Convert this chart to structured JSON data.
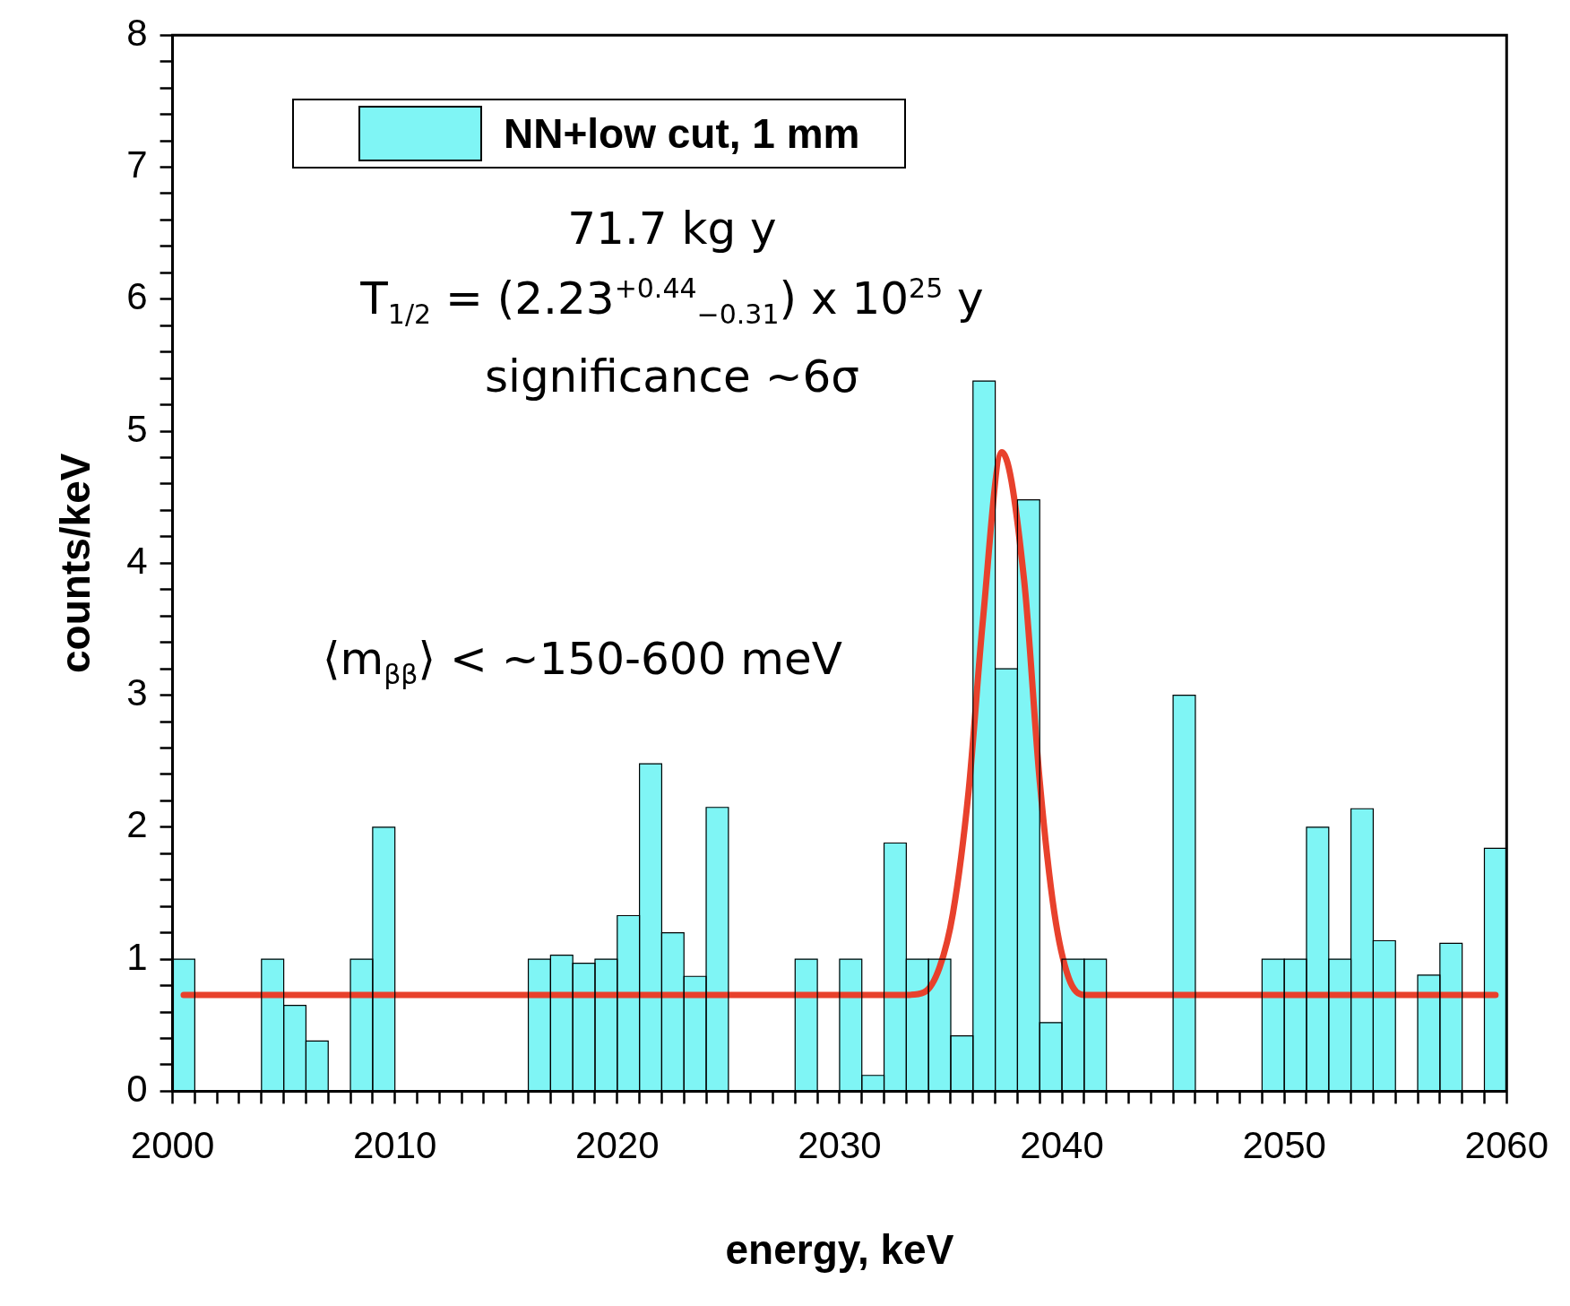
{
  "chart_data": {
    "type": "histogram",
    "xlabel": "energy, keV",
    "ylabel": "counts/keV",
    "bins": [
      2000,
      2001,
      2002,
      2003,
      2004,
      2005,
      2006,
      2007,
      2008,
      2009,
      2010,
      2011,
      2012,
      2013,
      2014,
      2015,
      2016,
      2017,
      2018,
      2019,
      2020,
      2021,
      2022,
      2023,
      2024,
      2025,
      2026,
      2027,
      2028,
      2029,
      2030,
      2031,
      2032,
      2033,
      2034,
      2035,
      2036,
      2037,
      2038,
      2039,
      2040,
      2041,
      2042,
      2043,
      2044,
      2045,
      2046,
      2047,
      2048,
      2049,
      2050,
      2051,
      2052,
      2053,
      2054,
      2055,
      2056,
      2057,
      2058,
      2059,
      2060
    ],
    "series": [
      {
        "name": "NN+low cut, 1 mm",
        "color": "#7ff5f5",
        "values": [
          1.0,
          0,
          0,
          0,
          1.0,
          0.65,
          0.38,
          0,
          1.0,
          2.0,
          0,
          0,
          0,
          0,
          0,
          0,
          1.0,
          1.03,
          0.97,
          1.0,
          1.33,
          2.48,
          1.2,
          0.87,
          2.15,
          0,
          0,
          0,
          1.0,
          0,
          1.0,
          0.12,
          1.88,
          1.0,
          1.0,
          0.42,
          5.38,
          3.2,
          4.48,
          0.52,
          1.0,
          1.0,
          0,
          0,
          0,
          3.0,
          0,
          0,
          0,
          1.0,
          1.0,
          2.0,
          1.0,
          2.14,
          1.14,
          0,
          0.88,
          1.12,
          0,
          1.84
        ]
      },
      {
        "type": "line",
        "color": "#e8412c",
        "x": [
          2000.5,
          2033,
          2033.8,
          2034.5,
          2035.1,
          2035.8,
          2036.43,
          2037.3,
          2038.3,
          2039.0,
          2039.66,
          2040.3,
          2041,
          2059.5
        ],
        "values": [
          0.73,
          0.73,
          0.75,
          0.94,
          1.35,
          2.27,
          3.54,
          4.84,
          3.87,
          2.35,
          1.35,
          0.86,
          0.73,
          0.73
        ]
      }
    ],
    "xlim": [
      2000,
      2060
    ],
    "xticks": [
      2000,
      {
        "value": 2001,
        "label": null
      },
      {
        "value": 2002,
        "label": null
      },
      {
        "value": 2003,
        "label": null
      },
      {
        "value": 2004,
        "label": null
      },
      {
        "value": 2005,
        "label": null
      },
      {
        "value": 2006,
        "label": null
      },
      {
        "value": 2007,
        "label": null
      },
      {
        "value": 2008,
        "label": null
      },
      {
        "value": 2009,
        "label": null
      },
      2010,
      {
        "value": 2011,
        "label": null
      },
      {
        "value": 2012,
        "label": null
      },
      {
        "value": 2013,
        "label": null
      },
      {
        "value": 2014,
        "label": null
      },
      {
        "value": 2015,
        "label": null
      },
      {
        "value": 2016,
        "label": null
      },
      {
        "value": 2017,
        "label": null
      },
      {
        "value": 2018,
        "label": null
      },
      {
        "value": 2019,
        "label": null
      },
      2020,
      {
        "value": 2021,
        "label": null
      },
      {
        "value": 2022,
        "label": null
      },
      {
        "value": 2023,
        "label": null
      },
      {
        "value": 2024,
        "label": null
      },
      {
        "value": 2025,
        "label": null
      },
      {
        "value": 2026,
        "label": null
      },
      {
        "value": 2027,
        "label": null
      },
      {
        "value": 2028,
        "label": null
      },
      {
        "value": 2029,
        "label": null
      },
      2030,
      {
        "value": 2031,
        "label": null
      },
      {
        "value": 2032,
        "label": null
      },
      {
        "value": 2033,
        "label": null
      },
      {
        "value": 2034,
        "label": null
      },
      {
        "value": 2035,
        "label": null
      },
      {
        "value": 2036,
        "label": null
      },
      {
        "value": 2037,
        "label": null
      },
      {
        "value": 2038,
        "label": null
      },
      {
        "value": 2039,
        "label": null
      },
      2040,
      {
        "value": 2041,
        "label": null
      },
      {
        "value": 2042,
        "label": null
      },
      {
        "value": 2043,
        "label": null
      },
      {
        "value": 2044,
        "label": null
      },
      {
        "value": 2045,
        "label": null
      },
      {
        "value": 2046,
        "label": null
      },
      {
        "value": 2047,
        "label": null
      },
      {
        "value": 2048,
        "label": null
      },
      {
        "value": 2049,
        "label": null
      },
      2050,
      {
        "value": 2051,
        "label": null
      },
      {
        "value": 2052,
        "label": null
      },
      {
        "value": 2053,
        "label": null
      },
      {
        "value": 2054,
        "label": null
      },
      {
        "value": 2055,
        "label": null
      },
      {
        "value": 2056,
        "label": null
      },
      {
        "value": 2057,
        "label": null
      },
      {
        "value": 2058,
        "label": null
      },
      {
        "value": 2059,
        "label": null
      },
      2060
    ],
    "ylim": [
      0,
      8
    ],
    "yticks": [
      0,
      {
        "value": 0.2,
        "label": null
      },
      {
        "value": 0.4,
        "label": null
      },
      {
        "value": 0.6,
        "label": null
      },
      {
        "value": 0.8,
        "label": null
      },
      1,
      {
        "value": 1.2,
        "label": null
      },
      {
        "value": 1.4,
        "label": null
      },
      {
        "value": 1.6,
        "label": null
      },
      {
        "value": 1.8,
        "label": null
      },
      2,
      {
        "value": 2.2,
        "label": null
      },
      {
        "value": 2.4,
        "label": null
      },
      {
        "value": 2.6,
        "label": null
      },
      {
        "value": 2.8,
        "label": null
      },
      3,
      {
        "value": 3.2,
        "label": null
      },
      {
        "value": 3.4,
        "label": null
      },
      {
        "value": 3.6,
        "label": null
      },
      {
        "value": 3.8,
        "label": null
      },
      4,
      {
        "value": 4.2,
        "label": null
      },
      {
        "value": 4.4,
        "label": null
      },
      {
        "value": 4.6,
        "label": null
      },
      {
        "value": 4.8,
        "label": null
      },
      5,
      {
        "value": 5.2,
        "label": null
      },
      {
        "value": 5.4,
        "label": null
      },
      {
        "value": 5.6,
        "label": null
      },
      {
        "value": 5.8,
        "label": null
      },
      6,
      {
        "value": 6.2,
        "label": null
      },
      {
        "value": 6.4,
        "label": null
      },
      {
        "value": 6.6,
        "label": null
      },
      {
        "value": 6.8,
        "label": null
      },
      7,
      {
        "value": 7.2,
        "label": null
      },
      {
        "value": 7.4,
        "label": null
      },
      {
        "value": 7.6,
        "label": null
      },
      {
        "value": 7.8,
        "label": null
      },
      8
    ],
    "grid": false,
    "legend": "top left",
    "annotations": [
      "71.7 kg y",
      "T$_{1/2}$ = (2.23$^{+0.44}$$_{−0.31}$) x 10$^{25}$ y",
      "significance ~6σ",
      "⟨m$_{ββ}$⟩  < ~150-600 meV"
    ]
  }
}
